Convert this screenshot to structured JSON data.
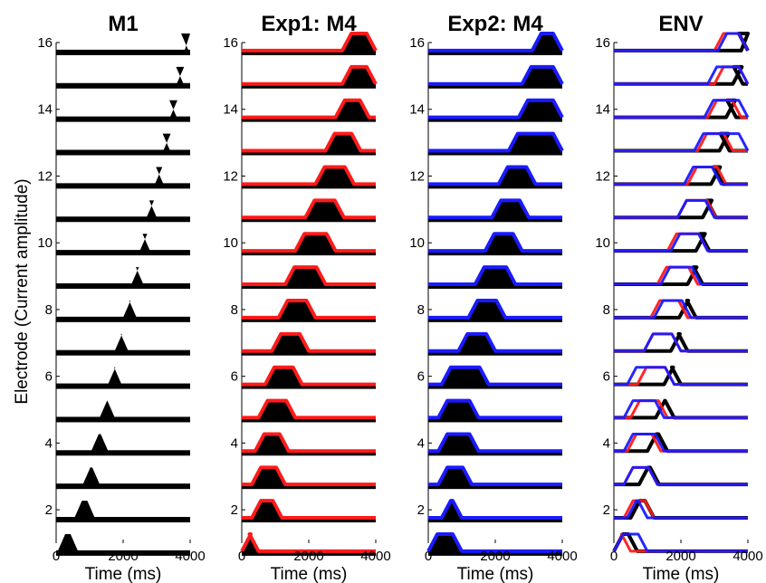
{
  "colors": {
    "trace_black": "#000000",
    "overlay_red": "#ff1a1a",
    "overlay_blue": "#1a1aff"
  },
  "shared_ylabel": "Electrode (Current amplitude)",
  "chart_data": [
    {
      "type": "line",
      "title": "M1",
      "xlabel": "Time (ms)",
      "ylabel": "Electrode (Current amplitude)",
      "xlim": [
        0,
        4000
      ],
      "ylim": [
        1,
        16
      ],
      "xticks": [
        "0",
        "2000",
        "4000"
      ],
      "yticks": [
        "2",
        "4",
        "6",
        "8",
        "10",
        "12",
        "14",
        "16"
      ],
      "style": "filled",
      "electrodes": [
        1,
        2,
        3,
        4,
        5,
        6,
        7,
        8,
        9,
        10,
        11,
        12,
        13,
        14,
        15,
        16
      ],
      "onset_ms": [
        0,
        500,
        750,
        1000,
        1250,
        1500,
        1700,
        1950,
        2200,
        2450,
        2650,
        2900,
        3150,
        3350,
        3550,
        3800
      ],
      "offset_ms": [
        700,
        1200,
        1350,
        1600,
        1800,
        2000,
        2200,
        2450,
        2650,
        2850,
        3050,
        3250,
        3450,
        3650,
        3850,
        4000
      ],
      "overlays": []
    },
    {
      "type": "line",
      "title": "Exp1: M4",
      "xlabel": "Time (ms)",
      "ylabel": "",
      "xlim": [
        0,
        4000
      ],
      "ylim": [
        1,
        16
      ],
      "xticks": [
        "0",
        "2000",
        "4000"
      ],
      "yticks": [
        "2",
        "4",
        "6",
        "8",
        "10",
        "12",
        "14",
        "16"
      ],
      "style": "filled",
      "electrodes": [
        1,
        2,
        3,
        4,
        5,
        6,
        7,
        8,
        9,
        10,
        11,
        12,
        13,
        14,
        15,
        16
      ],
      "onset_ms": [
        0,
        300,
        300,
        400,
        500,
        700,
        900,
        1100,
        1300,
        1600,
        1900,
        2200,
        2500,
        2800,
        3000,
        3000
      ],
      "offset_ms": [
        500,
        1200,
        1300,
        1400,
        1600,
        1800,
        2000,
        2200,
        2500,
        2800,
        3050,
        3350,
        3550,
        3800,
        4000,
        4000
      ],
      "overlays": [
        {
          "color": "#ff1a1a",
          "onset_ms": [
            0,
            300,
            300,
            400,
            500,
            700,
            900,
            1100,
            1300,
            1600,
            1900,
            2200,
            2500,
            2800,
            3000,
            3000
          ],
          "offset_ms": [
            500,
            1200,
            1300,
            1400,
            1600,
            1800,
            2000,
            2200,
            2500,
            2800,
            3050,
            3350,
            3550,
            3800,
            4000,
            4000
          ]
        }
      ]
    },
    {
      "type": "line",
      "title": "Exp2: M4",
      "xlabel": "Time (ms)",
      "ylabel": "",
      "xlim": [
        0,
        4000
      ],
      "ylim": [
        1,
        16
      ],
      "xticks": [
        "0",
        "2000",
        "4000"
      ],
      "yticks": [
        "2",
        "4",
        "6",
        "8",
        "10",
        "12",
        "14",
        "16"
      ],
      "style": "filled",
      "electrodes": [
        1,
        2,
        3,
        4,
        5,
        6,
        7,
        8,
        9,
        10,
        11,
        12,
        13,
        14,
        15,
        16
      ],
      "onset_ms": [
        0,
        400,
        300,
        300,
        300,
        400,
        900,
        1200,
        1400,
        1700,
        1900,
        2100,
        2400,
        2700,
        2800,
        3100
      ],
      "offset_ms": [
        1000,
        1000,
        1300,
        1500,
        1500,
        1800,
        2000,
        2300,
        2600,
        2800,
        3000,
        3200,
        4000,
        4000,
        4000,
        4000
      ],
      "overlays": [
        {
          "color": "#1a1aff",
          "onset_ms": [
            0,
            400,
            300,
            300,
            300,
            400,
            900,
            1200,
            1400,
            1700,
            1900,
            2100,
            2400,
            2700,
            2800,
            3100
          ],
          "offset_ms": [
            1000,
            1000,
            1300,
            1500,
            1500,
            1800,
            2000,
            2300,
            2600,
            2800,
            3000,
            3200,
            4000,
            4000,
            4000,
            4000
          ]
        }
      ]
    },
    {
      "type": "line",
      "title": "ENV",
      "xlabel": "Time (ms)",
      "ylabel": "",
      "xlim": [
        0,
        4000
      ],
      "ylim": [
        1,
        16
      ],
      "xticks": [
        "0",
        "2000",
        "4000"
      ],
      "yticks": [
        "2",
        "4",
        "6",
        "8",
        "10",
        "12",
        "14",
        "16"
      ],
      "style": "envelope",
      "electrodes": [
        1,
        2,
        3,
        4,
        5,
        6,
        7,
        8,
        9,
        10,
        11,
        12,
        13,
        14,
        15,
        16
      ],
      "onset_ms": [
        0,
        500,
        750,
        1000,
        1250,
        1500,
        1700,
        1950,
        2200,
        2450,
        2650,
        2900,
        3150,
        3350,
        3550,
        3800
      ],
      "offset_ms": [
        700,
        1200,
        1350,
        1600,
        1800,
        2000,
        2200,
        2450,
        2650,
        2850,
        3050,
        3250,
        3450,
        3650,
        3850,
        4000
      ],
      "overlays": [
        {
          "color": "#ff1a1a",
          "onset_ms": [
            0,
            300,
            300,
            400,
            500,
            700,
            900,
            1100,
            1300,
            1600,
            1900,
            2200,
            2500,
            2800,
            3000,
            3000
          ],
          "offset_ms": [
            500,
            1200,
            1300,
            1400,
            1600,
            1800,
            2000,
            2200,
            2500,
            2800,
            3050,
            3350,
            3550,
            3800,
            4000,
            4000
          ]
        },
        {
          "color": "#1a1aff",
          "onset_ms": [
            0,
            400,
            300,
            300,
            300,
            400,
            900,
            1200,
            1400,
            1700,
            1900,
            2100,
            2400,
            2700,
            2800,
            3100
          ],
          "offset_ms": [
            1000,
            1000,
            1300,
            1500,
            1500,
            1800,
            2000,
            2300,
            2600,
            2800,
            3000,
            3200,
            4000,
            4000,
            4000,
            4000
          ]
        }
      ]
    }
  ]
}
